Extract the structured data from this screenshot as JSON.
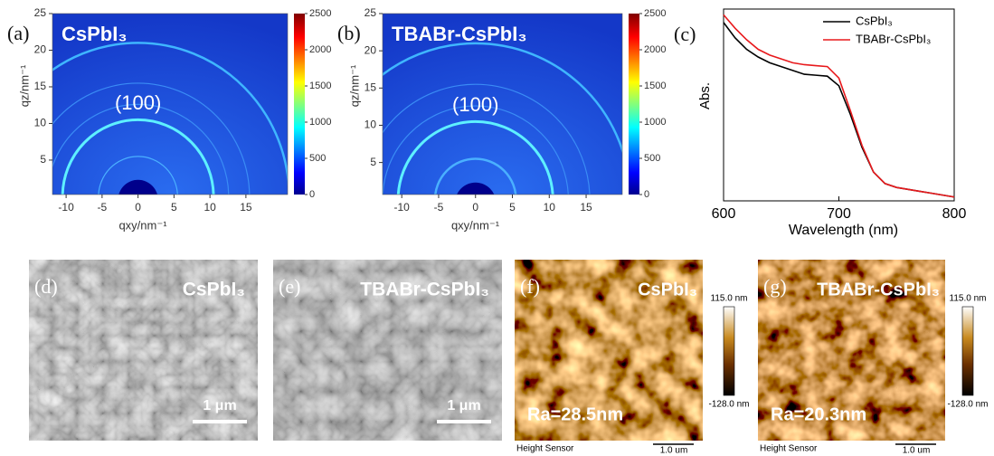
{
  "chart_data": [
    {
      "type": "heatmap",
      "label": "(a)",
      "title": "CsPbI₃",
      "annotation": "(100)",
      "xlabel": "qxy/nm⁻¹",
      "ylabel": "qz/nm⁻¹",
      "xlim": [
        -11.9,
        20.8
      ],
      "xticks": [
        -10,
        -5,
        0,
        5,
        10,
        15
      ],
      "ylim": [
        0.3,
        25
      ],
      "yticks": [
        5,
        10,
        15,
        20,
        25
      ],
      "clim": [
        0,
        2500
      ],
      "cticks": [
        0,
        500,
        1000,
        1500,
        2000,
        2500
      ]
    },
    {
      "type": "heatmap",
      "label": "(b)",
      "title": "TBABr-CsPbI₃",
      "annotation": "(100)",
      "xlabel": "qxy/nm⁻¹",
      "ylabel": "qz/nm⁻¹",
      "xlim": [
        -12.6,
        19.9
      ],
      "xticks": [
        -10,
        -5,
        0,
        5,
        10,
        15
      ],
      "ylim": [
        0.7,
        25
      ],
      "yticks": [
        5,
        10,
        15,
        20,
        25
      ],
      "clim": [
        0,
        2500
      ],
      "cticks": [
        0,
        500,
        1000,
        1500,
        2000,
        2500
      ]
    },
    {
      "type": "line",
      "label": "(c)",
      "xlabel": "Wavelength (nm)",
      "ylabel": "Abs.",
      "x": [
        600,
        610,
        620,
        630,
        640,
        650,
        660,
        670,
        680,
        690,
        700,
        710,
        720,
        730,
        740,
        750,
        760,
        770,
        780,
        790,
        800
      ],
      "xlim": [
        600,
        800
      ],
      "xticks": [
        600,
        700,
        800
      ],
      "ylim": [
        0,
        1
      ],
      "series": [
        {
          "name": "CsPbI₃",
          "color": "#000000",
          "values": [
            0.93,
            0.85,
            0.79,
            0.75,
            0.72,
            0.7,
            0.68,
            0.66,
            0.655,
            0.65,
            0.6,
            0.45,
            0.28,
            0.15,
            0.09,
            0.07,
            0.06,
            0.05,
            0.04,
            0.03,
            0.02
          ]
        },
        {
          "name": "TBABr-CsPbI₃",
          "color": "#e8191c",
          "values": [
            0.97,
            0.9,
            0.84,
            0.79,
            0.76,
            0.74,
            0.72,
            0.71,
            0.705,
            0.7,
            0.64,
            0.47,
            0.29,
            0.15,
            0.09,
            0.07,
            0.06,
            0.05,
            0.04,
            0.03,
            0.02
          ]
        }
      ]
    }
  ],
  "images": [
    {
      "kind": "sem",
      "label": "(d)",
      "title": "CsPbI₃",
      "scale_bar": "1 μm"
    },
    {
      "kind": "sem",
      "label": "(e)",
      "title": "TBABr-CsPbI₃",
      "scale_bar": "1 μm"
    },
    {
      "kind": "afm",
      "label": "(f)",
      "title": "CsPbI₃",
      "roughness": "Ra=28.5nm",
      "colorbar_max": "115.0 nm",
      "colorbar_min": "-128.0 nm",
      "footer": "Height Sensor",
      "scale_bar": "1.0 um"
    },
    {
      "kind": "afm",
      "label": "(g)",
      "title": "TBABr-CsPbI₃",
      "roughness": "Ra=20.3nm",
      "colorbar_max": "115.0 nm",
      "colorbar_min": "-128.0 nm",
      "footer": "Height Sensor",
      "scale_bar": "1.0 um"
    }
  ]
}
